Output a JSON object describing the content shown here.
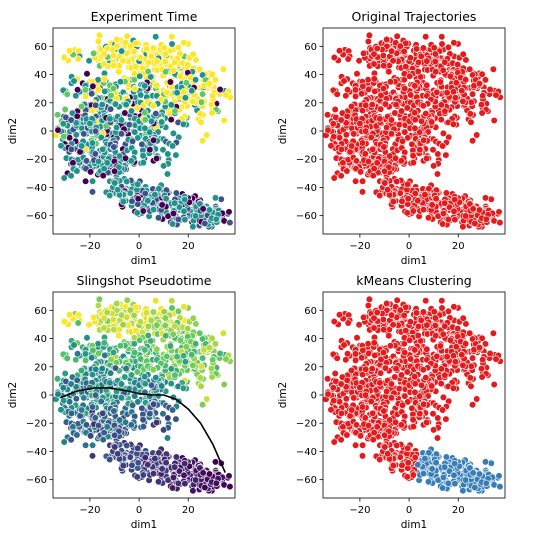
{
  "chart_data": [
    {
      "type": "scatter",
      "title": "Experiment Time",
      "xlabel": "dim1",
      "ylabel": "dim2",
      "xlim": [
        -35,
        39
      ],
      "ylim": [
        -73,
        73
      ],
      "xticks": [
        -20,
        0,
        20
      ],
      "yticks": [
        -60,
        -40,
        -20,
        0,
        20,
        40,
        60
      ],
      "color_mode": "time",
      "colormap": "viridis",
      "legend": "none"
    },
    {
      "type": "scatter",
      "title": "Original Trajectories",
      "xlabel": "dim1",
      "ylabel": "dim2",
      "xlim": [
        -35,
        39
      ],
      "ylim": [
        -73,
        73
      ],
      "xticks": [
        -20,
        0,
        20
      ],
      "yticks": [
        -60,
        -40,
        -20,
        0,
        20,
        40,
        60
      ],
      "color_mode": "single",
      "point_color": "#e41a1c",
      "legend": "none"
    },
    {
      "type": "scatter",
      "title": "Slingshot Pseudotime",
      "xlabel": "dim1",
      "ylabel": "dim2",
      "xlim": [
        -35,
        39
      ],
      "ylim": [
        -73,
        73
      ],
      "xticks": [
        -20,
        0,
        20
      ],
      "yticks": [
        -60,
        -40,
        -20,
        0,
        20,
        40,
        60
      ],
      "color_mode": "pseudotime",
      "colormap": "viridis",
      "legend": "none",
      "curve": {
        "x": [
          -32,
          -25,
          -18,
          -12,
          -5,
          0,
          5,
          10,
          15,
          20,
          25,
          30,
          35
        ],
        "y": [
          -2,
          3,
          5,
          5,
          3,
          1,
          0,
          0,
          -3,
          -10,
          -20,
          -35,
          -55
        ]
      }
    },
    {
      "type": "scatter",
      "title": "kMeans Clustering",
      "xlabel": "dim1",
      "ylabel": "dim2",
      "xlim": [
        -35,
        39
      ],
      "ylim": [
        -73,
        73
      ],
      "xticks": [
        -20,
        0,
        20
      ],
      "yticks": [
        -60,
        -40,
        -20,
        0,
        20,
        40,
        60
      ],
      "color_mode": "clusters",
      "cluster_colors": [
        "#e41a1c",
        "#377eb8"
      ],
      "legend": "none"
    }
  ],
  "colors": {
    "viridis": [
      "#440154",
      "#3b528b",
      "#21918c",
      "#5ec962",
      "#fde725"
    ]
  }
}
